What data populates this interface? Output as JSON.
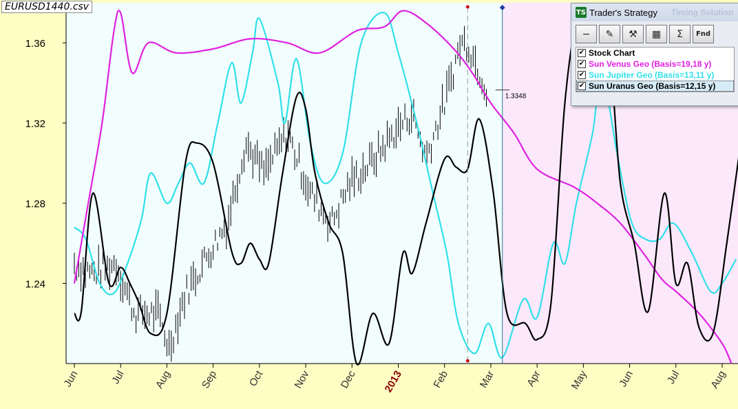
{
  "file_label": "EURUSD1440.csv",
  "chart_data": {
    "type": "line",
    "title": "",
    "ylim": [
      1.2,
      1.38
    ],
    "x_range_months": [
      0,
      14.4
    ],
    "y_ticks": [
      "1.24",
      "1.28",
      "1.32",
      "1.36"
    ],
    "months": [
      "Jun",
      "Jul",
      "Aug",
      "Sep",
      "Oct",
      "Nov",
      "Dec",
      "2013",
      "Feb",
      "Mar",
      "Apr",
      "May",
      "Jun",
      "Jul",
      "Aug"
    ],
    "year_label": "2013",
    "forecast_start": 9.25,
    "cursor_x": 8.5,
    "last_price": 1.3348,
    "last_price_label": "1.3348",
    "colors": {
      "stock": "#000000",
      "venus": "#e020e0",
      "jupiter": "#30e0e8",
      "uranus": "#000000",
      "year": "#8b0000",
      "cursor": "#d01010",
      "history_bg": "#f2fdfe",
      "forecast_bg": "#fbe9fb"
    },
    "stock_waypoints": [
      [
        0,
        1.25
      ],
      [
        0.4,
        1.245
      ],
      [
        0.9,
        1.25
      ],
      [
        1.3,
        1.225
      ],
      [
        1.8,
        1.225
      ],
      [
        2.05,
        1.208
      ],
      [
        2.4,
        1.235
      ],
      [
        2.9,
        1.255
      ],
      [
        3.3,
        1.27
      ],
      [
        3.7,
        1.31
      ],
      [
        4.1,
        1.295
      ],
      [
        4.6,
        1.315
      ],
      [
        5.1,
        1.285
      ],
      [
        5.55,
        1.27
      ],
      [
        5.95,
        1.29
      ],
      [
        6.4,
        1.3
      ],
      [
        6.9,
        1.315
      ],
      [
        7.3,
        1.325
      ],
      [
        7.6,
        1.303
      ],
      [
        8.0,
        1.33
      ],
      [
        8.35,
        1.36
      ],
      [
        8.5,
        1.36
      ],
      [
        8.95,
        1.3348
      ]
    ],
    "series": [
      {
        "name": "Sun Venus Geo",
        "legend": "Sun Venus  Geo   (Basis=19,18 y)",
        "values": [
          [
            0,
            1.24
          ],
          [
            0.3,
            1.28
          ],
          [
            0.6,
            1.32
          ],
          [
            0.85,
            1.365
          ],
          [
            1.0,
            1.375
          ],
          [
            1.25,
            1.345
          ],
          [
            1.6,
            1.36
          ],
          [
            2.2,
            1.355
          ],
          [
            3.0,
            1.357
          ],
          [
            3.8,
            1.362
          ],
          [
            4.6,
            1.36
          ],
          [
            5.3,
            1.355
          ],
          [
            6.1,
            1.366
          ],
          [
            6.7,
            1.368
          ],
          [
            7.1,
            1.376
          ],
          [
            7.6,
            1.37
          ],
          [
            8.2,
            1.357
          ],
          [
            8.6,
            1.345
          ],
          [
            9.0,
            1.33
          ],
          [
            9.5,
            1.315
          ],
          [
            10.0,
            1.297
          ],
          [
            10.8,
            1.288
          ],
          [
            11.3,
            1.28
          ],
          [
            11.8,
            1.27
          ],
          [
            12.3,
            1.255
          ],
          [
            12.7,
            1.242
          ],
          [
            13.0,
            1.236
          ],
          [
            13.5,
            1.225
          ],
          [
            14.0,
            1.21
          ],
          [
            14.2,
            1.2
          ]
        ]
      },
      {
        "name": "Sun Jupiter Geo",
        "legend": "Sun Jupiter  Geo   (Basis=13,11 y)",
        "values": [
          [
            0,
            1.268
          ],
          [
            0.25,
            1.262
          ],
          [
            0.55,
            1.24
          ],
          [
            0.85,
            1.235
          ],
          [
            1.15,
            1.25
          ],
          [
            1.45,
            1.272
          ],
          [
            1.65,
            1.295
          ],
          [
            2.0,
            1.28
          ],
          [
            2.25,
            1.29
          ],
          [
            2.5,
            1.3
          ],
          [
            2.8,
            1.29
          ],
          [
            3.1,
            1.32
          ],
          [
            3.4,
            1.35
          ],
          [
            3.6,
            1.33
          ],
          [
            3.85,
            1.355
          ],
          [
            4.0,
            1.372
          ],
          [
            4.4,
            1.34
          ],
          [
            4.55,
            1.32
          ],
          [
            4.8,
            1.352
          ],
          [
            5.1,
            1.31
          ],
          [
            5.4,
            1.29
          ],
          [
            5.8,
            1.305
          ],
          [
            6.2,
            1.36
          ],
          [
            6.7,
            1.375
          ],
          [
            7.0,
            1.355
          ],
          [
            7.4,
            1.32
          ],
          [
            7.75,
            1.285
          ],
          [
            8.05,
            1.255
          ],
          [
            8.3,
            1.22
          ],
          [
            8.65,
            1.205
          ],
          [
            8.95,
            1.22
          ],
          [
            9.25,
            1.203
          ],
          [
            9.7,
            1.232
          ],
          [
            10.0,
            1.223
          ],
          [
            10.35,
            1.26
          ],
          [
            10.6,
            1.25
          ],
          [
            10.85,
            1.28
          ],
          [
            11.2,
            1.315
          ],
          [
            11.4,
            1.345
          ],
          [
            11.75,
            1.302
          ],
          [
            12.05,
            1.27
          ],
          [
            12.35,
            1.262
          ],
          [
            12.65,
            1.262
          ],
          [
            12.95,
            1.27
          ],
          [
            13.35,
            1.255
          ],
          [
            13.75,
            1.236
          ],
          [
            14.0,
            1.24
          ],
          [
            14.3,
            1.252
          ]
        ]
      },
      {
        "name": "Sun Uranus Geo",
        "legend": "Sun Uranus  Geo   (Basis=12,15 y)",
        "values": [
          [
            0,
            1.225
          ],
          [
            0.15,
            1.226
          ],
          [
            0.4,
            1.285
          ],
          [
            0.75,
            1.24
          ],
          [
            1.0,
            1.248
          ],
          [
            1.2,
            1.24
          ],
          [
            1.4,
            1.23
          ],
          [
            1.65,
            1.215
          ],
          [
            2.0,
            1.225
          ],
          [
            2.4,
            1.3
          ],
          [
            2.65,
            1.31
          ],
          [
            3.0,
            1.3
          ],
          [
            3.4,
            1.256
          ],
          [
            3.6,
            1.25
          ],
          [
            3.8,
            1.26
          ],
          [
            4.0,
            1.252
          ],
          [
            4.2,
            1.25
          ],
          [
            4.5,
            1.295
          ],
          [
            4.8,
            1.333
          ],
          [
            5.0,
            1.327
          ],
          [
            5.2,
            1.295
          ],
          [
            5.5,
            1.27
          ],
          [
            5.8,
            1.255
          ],
          [
            6.1,
            1.2
          ],
          [
            6.45,
            1.225
          ],
          [
            6.8,
            1.21
          ],
          [
            7.1,
            1.255
          ],
          [
            7.3,
            1.245
          ],
          [
            7.6,
            1.27
          ],
          [
            8.0,
            1.302
          ],
          [
            8.25,
            1.298
          ],
          [
            8.5,
            1.297
          ],
          [
            8.75,
            1.322
          ],
          [
            9.05,
            1.286
          ],
          [
            9.35,
            1.225
          ],
          [
            9.75,
            1.22
          ],
          [
            10.0,
            1.212
          ],
          [
            10.3,
            1.23
          ],
          [
            10.6,
            1.33
          ],
          [
            10.9,
            1.375
          ],
          [
            11.2,
            1.374
          ],
          [
            11.55,
            1.358
          ],
          [
            11.8,
            1.29
          ],
          [
            12.1,
            1.26
          ],
          [
            12.4,
            1.226
          ],
          [
            12.75,
            1.285
          ],
          [
            13.0,
            1.24
          ],
          [
            13.25,
            1.25
          ],
          [
            13.5,
            1.218
          ],
          [
            13.8,
            1.215
          ],
          [
            14.1,
            1.26
          ],
          [
            14.4,
            1.31
          ]
        ]
      }
    ]
  },
  "panel": {
    "title": "Trader's Strategy",
    "logo": "TS",
    "ghost_title": "Timing Solution",
    "buttons": [
      {
        "name": "minus-button",
        "icon": "minus-icon",
        "glyph": "−"
      },
      {
        "name": "brush-button",
        "icon": "brush-icon",
        "glyph": "✎"
      },
      {
        "name": "tools-button",
        "icon": "tools-icon",
        "glyph": "⚒"
      },
      {
        "name": "excel-button",
        "icon": "excel-icon",
        "glyph": "▦"
      },
      {
        "name": "sum-button",
        "icon": "sigma-icon",
        "glyph": "Σ"
      },
      {
        "name": "find-button",
        "icon": "find-icon",
        "glyph": "Fnd"
      }
    ],
    "items": [
      {
        "label": "Stock Chart",
        "color": "#000000",
        "checked": true
      },
      {
        "label": "Sun Venus  Geo   (Basis=19,18 y)",
        "color": "#e020e0",
        "checked": true
      },
      {
        "label": "Sun Jupiter  Geo   (Basis=13,11 y)",
        "color": "#30e0e8",
        "checked": true
      },
      {
        "label": "Sun Uranus  Geo   (Basis=12,15 y)",
        "color": "#000000",
        "checked": true
      }
    ],
    "check_glyph": "✔"
  }
}
